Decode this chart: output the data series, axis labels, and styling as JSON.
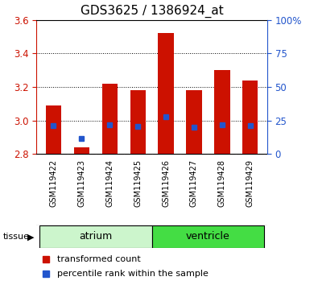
{
  "title": "GDS3625 / 1386924_at",
  "samples": [
    "GSM119422",
    "GSM119423",
    "GSM119424",
    "GSM119425",
    "GSM119426",
    "GSM119427",
    "GSM119428",
    "GSM119429"
  ],
  "bar_tops": [
    3.09,
    2.84,
    3.22,
    3.18,
    3.52,
    3.18,
    3.3,
    3.24
  ],
  "blue_dots": [
    2.97,
    2.89,
    2.975,
    2.963,
    3.02,
    2.958,
    2.972,
    2.967
  ],
  "y_min": 2.8,
  "y_max": 3.6,
  "y_ticks": [
    2.8,
    3.0,
    3.2,
    3.4,
    3.6
  ],
  "bar_color": "#cc1100",
  "dot_color": "#2255cc",
  "bar_width": 0.55,
  "background_color": "#ffffff",
  "xlabel_bg": "#c8c8c8",
  "atrium_color": "#ccf5cc",
  "ventricle_color": "#44dd44",
  "title_fontsize": 11,
  "tick_fontsize": 8.5,
  "sample_fontsize": 7,
  "group_fontsize": 9,
  "legend_fontsize": 8
}
